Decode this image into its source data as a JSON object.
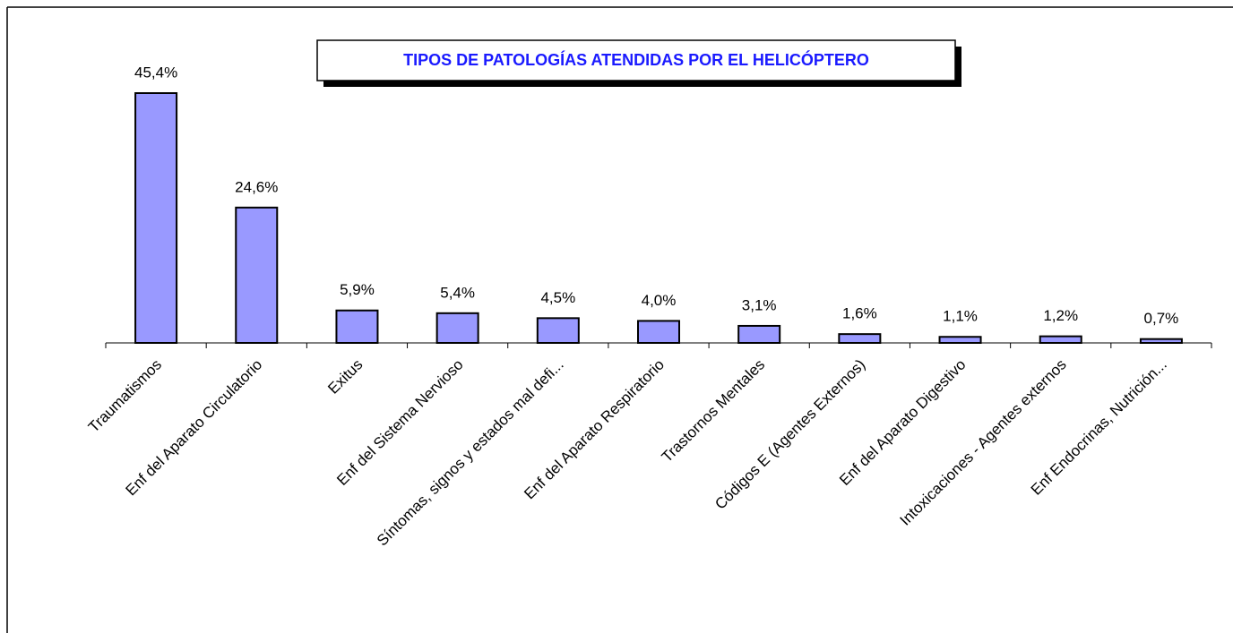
{
  "chart_data": {
    "type": "bar",
    "title": "TIPOS DE PATOLOGÍAS ATENDIDAS POR EL HELICÓPTERO",
    "categories": [
      "Traumatismos",
      "Enf del Aparato Circulatorio",
      "Exitus",
      "Enf del Sistema Nervioso",
      "Síntomas, signos y estados mal defi...",
      "Enf del Aparato Respiratorio",
      "Trastornos Mentales",
      "Códigos E (Agentes Externos)",
      "Enf del Aparato Digestivo",
      "Intoxicaciones - Agentes externos",
      "Enf Endocrinas, Nutrición..."
    ],
    "values": [
      45.4,
      24.6,
      5.9,
      5.4,
      4.5,
      4.0,
      3.1,
      1.6,
      1.1,
      1.2,
      0.7
    ],
    "value_labels": [
      "45,4%",
      "24,6%",
      "5,9%",
      "5,4%",
      "4,5%",
      "4,0%",
      "3,1%",
      "1,6%",
      "1,1%",
      "1,2%",
      "0,7%"
    ],
    "color": "#9999ff"
  }
}
